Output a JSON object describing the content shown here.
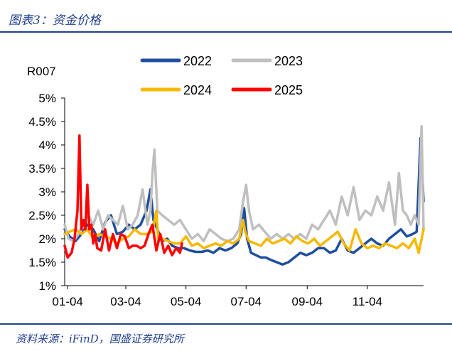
{
  "header": {
    "title": "图表3：资金价格"
  },
  "footer": {
    "source": "资料来源：iFinD，国盛证券研究所"
  },
  "chart_data": {
    "type": "line",
    "title": "",
    "xlabel": "",
    "ylabel": "R007",
    "x_tick_labels": [
      "01-04",
      "03-04",
      "05-04",
      "07-04",
      "09-04",
      "11-04"
    ],
    "y_tick_labels": [
      "1%",
      "1.5%",
      "2%",
      "2.5%",
      "3%",
      "3.5%",
      "4%",
      "4.5%",
      "5%"
    ],
    "ylim": [
      1.0,
      5.0
    ],
    "xlim_day_of_year": [
      1,
      365
    ],
    "x_ticks_day_of_year": [
      4,
      63,
      124,
      185,
      247,
      308
    ],
    "grid": false,
    "legend_position": "top",
    "series": [
      {
        "name": "2022",
        "color": "#1f4e9e",
        "x_day_of_year": [
          1,
          6,
          12,
          18,
          24,
          30,
          36,
          42,
          48,
          54,
          60,
          66,
          72,
          78,
          84,
          88,
          91,
          95,
          100,
          105,
          110,
          116,
          122,
          128,
          134,
          140,
          146,
          152,
          158,
          164,
          170,
          176,
          180,
          183,
          186,
          190,
          195,
          200,
          205,
          210,
          216,
          222,
          228,
          234,
          240,
          246,
          252,
          258,
          264,
          270,
          276,
          282,
          288,
          294,
          300,
          306,
          312,
          318,
          324,
          330,
          336,
          342,
          348,
          354,
          358,
          362,
          365
        ],
        "values": [
          2.2,
          2.05,
          1.95,
          2.1,
          2.3,
          2.2,
          1.95,
          2.35,
          2.5,
          2.1,
          2.15,
          2.3,
          2.2,
          2.3,
          2.6,
          3.05,
          2.4,
          2.2,
          1.95,
          2.0,
          1.85,
          1.8,
          1.8,
          1.75,
          1.72,
          1.72,
          1.75,
          1.7,
          1.8,
          1.75,
          1.8,
          1.9,
          2.1,
          2.65,
          2.0,
          1.7,
          1.65,
          1.6,
          1.6,
          1.55,
          1.5,
          1.45,
          1.5,
          1.6,
          1.7,
          1.65,
          1.7,
          1.8,
          1.8,
          1.7,
          1.75,
          2.0,
          1.75,
          1.7,
          1.8,
          1.9,
          2.0,
          1.9,
          1.85,
          2.0,
          2.1,
          2.2,
          2.05,
          2.1,
          2.15,
          4.15,
          2.8
        ]
      },
      {
        "name": "2023",
        "color": "#bfbfbf",
        "x_day_of_year": [
          1,
          5,
          10,
          15,
          20,
          25,
          30,
          35,
          40,
          45,
          50,
          55,
          60,
          65,
          70,
          75,
          80,
          85,
          88,
          90,
          92,
          95,
          100,
          106,
          112,
          118,
          124,
          130,
          136,
          142,
          148,
          154,
          160,
          166,
          172,
          178,
          182,
          185,
          188,
          192,
          198,
          204,
          210,
          216,
          222,
          228,
          234,
          240,
          246,
          252,
          258,
          264,
          270,
          276,
          282,
          288,
          294,
          300,
          306,
          312,
          318,
          324,
          330,
          336,
          340,
          344,
          348,
          352,
          356,
          360,
          363,
          365
        ],
        "values": [
          2.3,
          2.0,
          1.95,
          2.1,
          2.35,
          2.5,
          2.3,
          2.6,
          2.2,
          2.5,
          2.4,
          2.3,
          2.7,
          2.2,
          2.3,
          2.5,
          3.05,
          2.3,
          2.6,
          3.4,
          3.9,
          2.6,
          2.5,
          2.4,
          2.3,
          2.4,
          2.2,
          2.0,
          2.1,
          1.95,
          2.2,
          2.1,
          2.0,
          1.95,
          2.0,
          2.2,
          2.8,
          3.15,
          2.6,
          2.2,
          2.3,
          2.15,
          2.0,
          2.1,
          2.0,
          2.1,
          2.0,
          2.1,
          2.0,
          2.3,
          2.2,
          2.4,
          2.6,
          2.3,
          2.9,
          2.5,
          3.1,
          2.4,
          2.6,
          2.5,
          2.9,
          2.6,
          3.2,
          2.3,
          3.4,
          2.6,
          2.5,
          2.3,
          2.5,
          2.3,
          4.4,
          2.2
        ]
      },
      {
        "name": "2024",
        "color": "#f7b800",
        "x_day_of_year": [
          1,
          6,
          12,
          18,
          24,
          30,
          36,
          42,
          48,
          54,
          60,
          66,
          72,
          78,
          84,
          90,
          94,
          96,
          100,
          106,
          112,
          118,
          124,
          130,
          136,
          142,
          148,
          154,
          160,
          166,
          172,
          178,
          182,
          184,
          188,
          194,
          200,
          206,
          212,
          218,
          224,
          230,
          236,
          242,
          248,
          254,
          260,
          266,
          272,
          278,
          284,
          290,
          296,
          302,
          308,
          314,
          320,
          326,
          332,
          338,
          344,
          350,
          356,
          360,
          365
        ],
        "values": [
          2.1,
          2.15,
          2.2,
          2.1,
          2.2,
          2.0,
          2.1,
          2.05,
          2.0,
          1.9,
          2.0,
          2.05,
          2.2,
          2.1,
          2.1,
          2.15,
          2.6,
          1.95,
          2.0,
          1.95,
          1.9,
          1.9,
          2.05,
          1.85,
          1.9,
          1.8,
          1.85,
          1.9,
          1.85,
          1.95,
          1.9,
          2.0,
          2.4,
          2.15,
          1.95,
          1.9,
          1.85,
          2.0,
          1.9,
          1.95,
          2.0,
          1.9,
          2.05,
          1.95,
          1.9,
          2.0,
          1.85,
          1.95,
          2.05,
          2.15,
          1.9,
          1.75,
          2.2,
          1.9,
          1.8,
          1.85,
          1.8,
          1.9,
          1.85,
          1.8,
          1.9,
          1.8,
          2.0,
          1.7,
          2.2
        ]
      },
      {
        "name": "2025",
        "color": "#ff0000",
        "x_day_of_year": [
          1,
          4,
          8,
          11,
          14,
          16,
          18,
          20,
          22,
          24,
          26,
          28,
          30,
          32,
          34,
          38,
          42,
          46,
          50,
          54,
          58,
          62,
          66,
          70,
          74,
          78,
          82,
          86,
          90,
          94,
          98,
          102,
          106,
          110,
          114,
          118,
          120
        ],
        "values": [
          1.85,
          1.6,
          1.7,
          2.0,
          2.6,
          4.2,
          2.2,
          2.4,
          2.2,
          3.15,
          2.2,
          2.3,
          1.9,
          2.1,
          1.8,
          1.75,
          2.2,
          1.75,
          2.1,
          1.8,
          2.1,
          2.05,
          1.8,
          1.85,
          1.85,
          1.8,
          1.85,
          2.1,
          2.3,
          1.75,
          2.1,
          1.7,
          1.85,
          1.65,
          1.8,
          1.7,
          1.9
        ]
      }
    ]
  }
}
